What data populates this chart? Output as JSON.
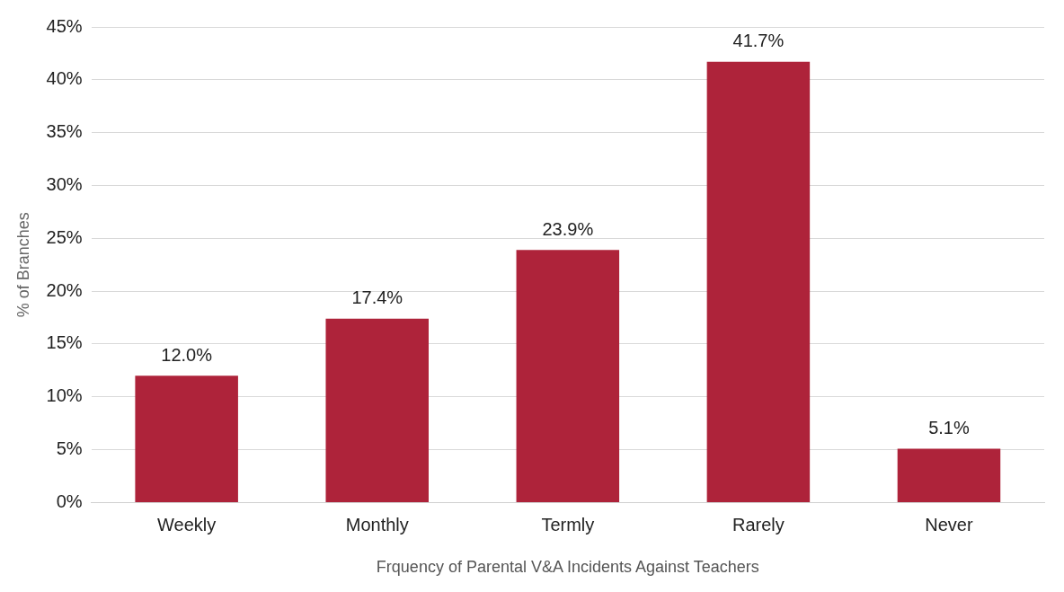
{
  "chart_data": {
    "type": "bar",
    "xlabel": "Frquency of Parental V&A Incidents Against Teachers",
    "ylabel": "% of Branches",
    "categories": [
      "Weekly",
      "Monthly",
      "Termly",
      "Rarely",
      "Never"
    ],
    "values": [
      12.0,
      17.4,
      23.9,
      41.7,
      5.1
    ],
    "value_labels": [
      "12.0%",
      "17.4%",
      "23.9%",
      "41.7%",
      "5.1%"
    ],
    "color": "#ae233a",
    "ylim": [
      0,
      45
    ],
    "yticks": [
      {
        "value": 0,
        "label": "0%"
      },
      {
        "value": 5,
        "label": "5%"
      },
      {
        "value": 10,
        "label": "10%"
      },
      {
        "value": 15,
        "label": "15%"
      },
      {
        "value": 20,
        "label": "20%"
      },
      {
        "value": 25,
        "label": "25%"
      },
      {
        "value": 30,
        "label": "30%"
      },
      {
        "value": 35,
        "label": "35%"
      },
      {
        "value": 40,
        "label": "40%"
      },
      {
        "value": 45,
        "label": "45%"
      }
    ],
    "grid": "y",
    "legend": false
  }
}
